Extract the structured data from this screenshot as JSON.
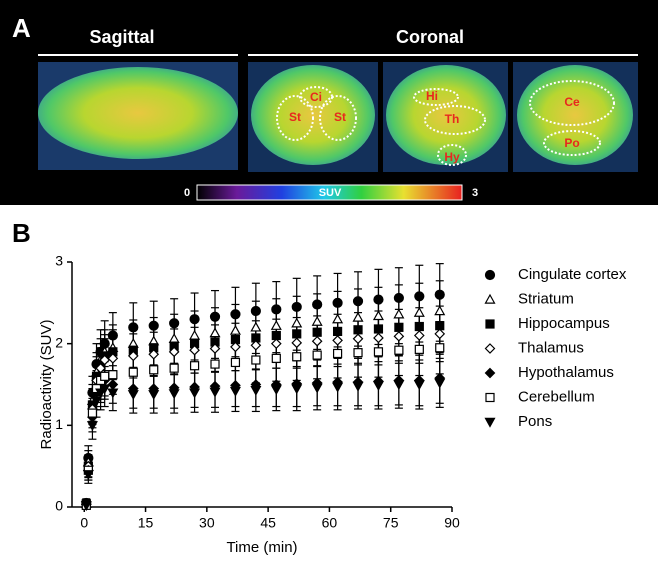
{
  "panel_a": {
    "label": "A",
    "sagittal": "Sagittal",
    "coronal": "Coronal",
    "regions": [
      "Ci",
      "St",
      "St",
      "Hi",
      "Th",
      "Hy",
      "Ce",
      "Po"
    ],
    "colorbar": {
      "min": 0,
      "label": "SUV",
      "max": 3
    }
  },
  "panel_b_label": "B",
  "chart_data": {
    "type": "scatter",
    "xlabel": "Time (min)",
    "ylabel": "Radioactivity (SUV)",
    "xlim": [
      -3,
      90
    ],
    "ylim": [
      0,
      3
    ],
    "xticks": [
      0,
      15,
      30,
      45,
      60,
      75,
      90
    ],
    "yticks": [
      0,
      1,
      2,
      3
    ],
    "x": [
      0.5,
      1,
      2,
      3,
      4,
      5,
      7,
      12,
      17,
      22,
      27,
      32,
      37,
      42,
      47,
      52,
      57,
      62,
      67,
      72,
      77,
      82,
      87
    ],
    "series": [
      {
        "name": "Cingulate cortex",
        "color": "#000000",
        "marker": "circle",
        "values": [
          0.05,
          0.6,
          1.4,
          1.75,
          1.9,
          2.0,
          2.1,
          2.2,
          2.22,
          2.25,
          2.3,
          2.33,
          2.36,
          2.4,
          2.42,
          2.45,
          2.48,
          2.5,
          2.52,
          2.54,
          2.56,
          2.58,
          2.6
        ],
        "errors": [
          0.05,
          0.15,
          0.2,
          0.25,
          0.27,
          0.28,
          0.28,
          0.3,
          0.3,
          0.3,
          0.32,
          0.32,
          0.33,
          0.34,
          0.34,
          0.35,
          0.35,
          0.36,
          0.36,
          0.37,
          0.37,
          0.38,
          0.38
        ]
      },
      {
        "name": "Striatum",
        "color": "#000000",
        "marker": "triangle-open",
        "values": [
          0.04,
          0.55,
          1.3,
          1.65,
          1.8,
          1.9,
          1.95,
          2.0,
          2.03,
          2.06,
          2.1,
          2.13,
          2.16,
          2.2,
          2.22,
          2.25,
          2.27,
          2.3,
          2.32,
          2.34,
          2.36,
          2.38,
          2.4
        ],
        "errors": [
          0.04,
          0.14,
          0.2,
          0.24,
          0.26,
          0.27,
          0.28,
          0.29,
          0.29,
          0.3,
          0.3,
          0.31,
          0.32,
          0.32,
          0.33,
          0.33,
          0.34,
          0.34,
          0.35,
          0.35,
          0.36,
          0.36,
          0.37
        ]
      },
      {
        "name": "Hippocampus",
        "color": "#000000",
        "marker": "square",
        "values": [
          0.04,
          0.5,
          1.25,
          1.6,
          1.75,
          1.85,
          1.9,
          1.92,
          1.95,
          1.97,
          2.0,
          2.02,
          2.05,
          2.07,
          2.1,
          2.12,
          2.14,
          2.15,
          2.17,
          2.18,
          2.2,
          2.21,
          2.22
        ],
        "errors": [
          0.04,
          0.14,
          0.2,
          0.24,
          0.25,
          0.26,
          0.27,
          0.28,
          0.28,
          0.29,
          0.29,
          0.3,
          0.3,
          0.31,
          0.31,
          0.32,
          0.32,
          0.33,
          0.33,
          0.34,
          0.34,
          0.35,
          0.35
        ]
      },
      {
        "name": "Thalamus",
        "color": "#000000",
        "marker": "diamond-open",
        "values": [
          0.03,
          0.5,
          1.2,
          1.55,
          1.7,
          1.8,
          1.82,
          1.85,
          1.87,
          1.9,
          1.92,
          1.94,
          1.96,
          1.98,
          2.0,
          2.01,
          2.03,
          2.04,
          2.06,
          2.07,
          2.09,
          2.1,
          2.12
        ],
        "errors": [
          0.03,
          0.13,
          0.19,
          0.23,
          0.25,
          0.26,
          0.26,
          0.27,
          0.27,
          0.28,
          0.28,
          0.29,
          0.29,
          0.3,
          0.3,
          0.31,
          0.31,
          0.32,
          0.32,
          0.33,
          0.33,
          0.34,
          0.34
        ]
      },
      {
        "name": "Hypothalamus",
        "color": "#000000",
        "marker": "diamond",
        "values": [
          0.03,
          0.45,
          1.1,
          1.4,
          1.5,
          1.55,
          1.5,
          1.45,
          1.45,
          1.46,
          1.47,
          1.48,
          1.49,
          1.5,
          1.5,
          1.51,
          1.52,
          1.53,
          1.53,
          1.54,
          1.55,
          1.55,
          1.58
        ],
        "errors": [
          0.03,
          0.12,
          0.18,
          0.21,
          0.22,
          0.23,
          0.23,
          0.24,
          0.24,
          0.25,
          0.25,
          0.26,
          0.26,
          0.27,
          0.27,
          0.28,
          0.28,
          0.29,
          0.29,
          0.3,
          0.3,
          0.31,
          0.31
        ]
      },
      {
        "name": "Cerebellum",
        "color": "#000000",
        "marker": "square-open",
        "values": [
          0.02,
          0.45,
          1.15,
          1.45,
          1.55,
          1.6,
          1.62,
          1.65,
          1.68,
          1.7,
          1.73,
          1.75,
          1.77,
          1.8,
          1.82,
          1.84,
          1.86,
          1.88,
          1.89,
          1.9,
          1.92,
          1.93,
          1.95
        ],
        "errors": [
          0.03,
          0.12,
          0.18,
          0.22,
          0.23,
          0.24,
          0.24,
          0.25,
          0.25,
          0.26,
          0.26,
          0.27,
          0.27,
          0.28,
          0.28,
          0.29,
          0.29,
          0.3,
          0.3,
          0.31,
          0.31,
          0.32,
          0.32
        ]
      },
      {
        "name": "Pons",
        "color": "#000000",
        "marker": "triangle-down",
        "values": [
          0.02,
          0.4,
          1.0,
          1.3,
          1.4,
          1.45,
          1.4,
          1.38,
          1.38,
          1.39,
          1.4,
          1.41,
          1.42,
          1.43,
          1.44,
          1.45,
          1.46,
          1.47,
          1.48,
          1.49,
          1.5,
          1.5,
          1.52
        ],
        "errors": [
          0.02,
          0.11,
          0.17,
          0.2,
          0.21,
          0.22,
          0.22,
          0.23,
          0.23,
          0.24,
          0.24,
          0.25,
          0.25,
          0.26,
          0.26,
          0.27,
          0.27,
          0.28,
          0.28,
          0.29,
          0.29,
          0.3,
          0.3
        ]
      }
    ],
    "legend": "right"
  }
}
